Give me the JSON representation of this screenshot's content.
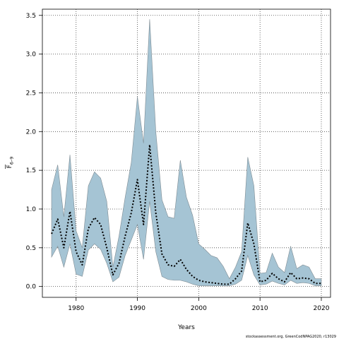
{
  "chart_data": {
    "type": "area",
    "title": "",
    "xlabel": "Years",
    "ylabel": "F̅ 6-9",
    "ylabel_main": "F",
    "ylabel_sub": "6–9",
    "xlim": [
      1974.5,
      2021.5
    ],
    "ylim": [
      -0.14,
      3.58
    ],
    "xticks": [
      1980,
      1990,
      2000,
      2010,
      2020
    ],
    "yticks": [
      0.0,
      0.5,
      1.0,
      1.5,
      2.0,
      2.5,
      3.0,
      3.5
    ],
    "xtick_labels": [
      "1980",
      "1990",
      "2000",
      "2010",
      "2020"
    ],
    "ytick_labels": [
      "0.0",
      "0.5",
      "1.0",
      "1.5",
      "2.0",
      "2.5",
      "3.0",
      "3.5"
    ],
    "grid": true,
    "band_color": "#a5c4d4",
    "band_edge_color": "#7f8c93",
    "line_color": "#000000",
    "x": [
      1976,
      1977,
      1978,
      1979,
      1980,
      1981,
      1982,
      1983,
      1984,
      1985,
      1986,
      1987,
      1988,
      1989,
      1990,
      1991,
      1992,
      1993,
      1994,
      1995,
      1996,
      1997,
      1998,
      1999,
      2000,
      2001,
      2002,
      2003,
      2004,
      2005,
      2006,
      2007,
      2008,
      2009,
      2010,
      2011,
      2012,
      2013,
      2014,
      2015,
      2016,
      2017,
      2018,
      2019,
      2020
    ],
    "series": [
      {
        "role": "upper",
        "values": [
          1.25,
          1.57,
          0.9,
          1.7,
          0.72,
          0.5,
          1.3,
          1.48,
          1.4,
          1.1,
          0.25,
          0.65,
          1.15,
          1.6,
          2.45,
          1.85,
          3.45,
          2.0,
          1.12,
          0.9,
          0.88,
          1.63,
          1.15,
          0.92,
          0.55,
          0.48,
          0.4,
          0.37,
          0.26,
          0.1,
          0.25,
          0.45,
          1.67,
          1.3,
          0.17,
          0.18,
          0.43,
          0.25,
          0.18,
          0.52,
          0.23,
          0.28,
          0.25,
          0.1,
          0.1
        ]
      },
      {
        "role": "median",
        "values": [
          0.68,
          0.87,
          0.5,
          0.97,
          0.45,
          0.28,
          0.75,
          0.89,
          0.8,
          0.5,
          0.15,
          0.3,
          0.65,
          0.95,
          1.38,
          0.8,
          1.83,
          0.95,
          0.42,
          0.28,
          0.26,
          0.35,
          0.22,
          0.13,
          0.08,
          0.06,
          0.05,
          0.04,
          0.03,
          0.03,
          0.1,
          0.2,
          0.82,
          0.55,
          0.06,
          0.08,
          0.17,
          0.1,
          0.06,
          0.18,
          0.1,
          0.11,
          0.1,
          0.04,
          0.04
        ]
      },
      {
        "role": "lower",
        "values": [
          0.38,
          0.52,
          0.25,
          0.55,
          0.16,
          0.13,
          0.47,
          0.55,
          0.48,
          0.3,
          0.06,
          0.12,
          0.4,
          0.6,
          0.8,
          0.35,
          1.1,
          0.45,
          0.13,
          0.09,
          0.08,
          0.08,
          0.06,
          0.03,
          0.01,
          0.01,
          0.01,
          0.01,
          0.01,
          0.01,
          0.03,
          0.08,
          0.4,
          0.15,
          0.02,
          0.03,
          0.07,
          0.04,
          0.02,
          0.08,
          0.04,
          0.05,
          0.04,
          0.01,
          0.01
        ]
      }
    ],
    "footer": "stockassessment.org, GreenCodNPAG2020, r13029"
  }
}
